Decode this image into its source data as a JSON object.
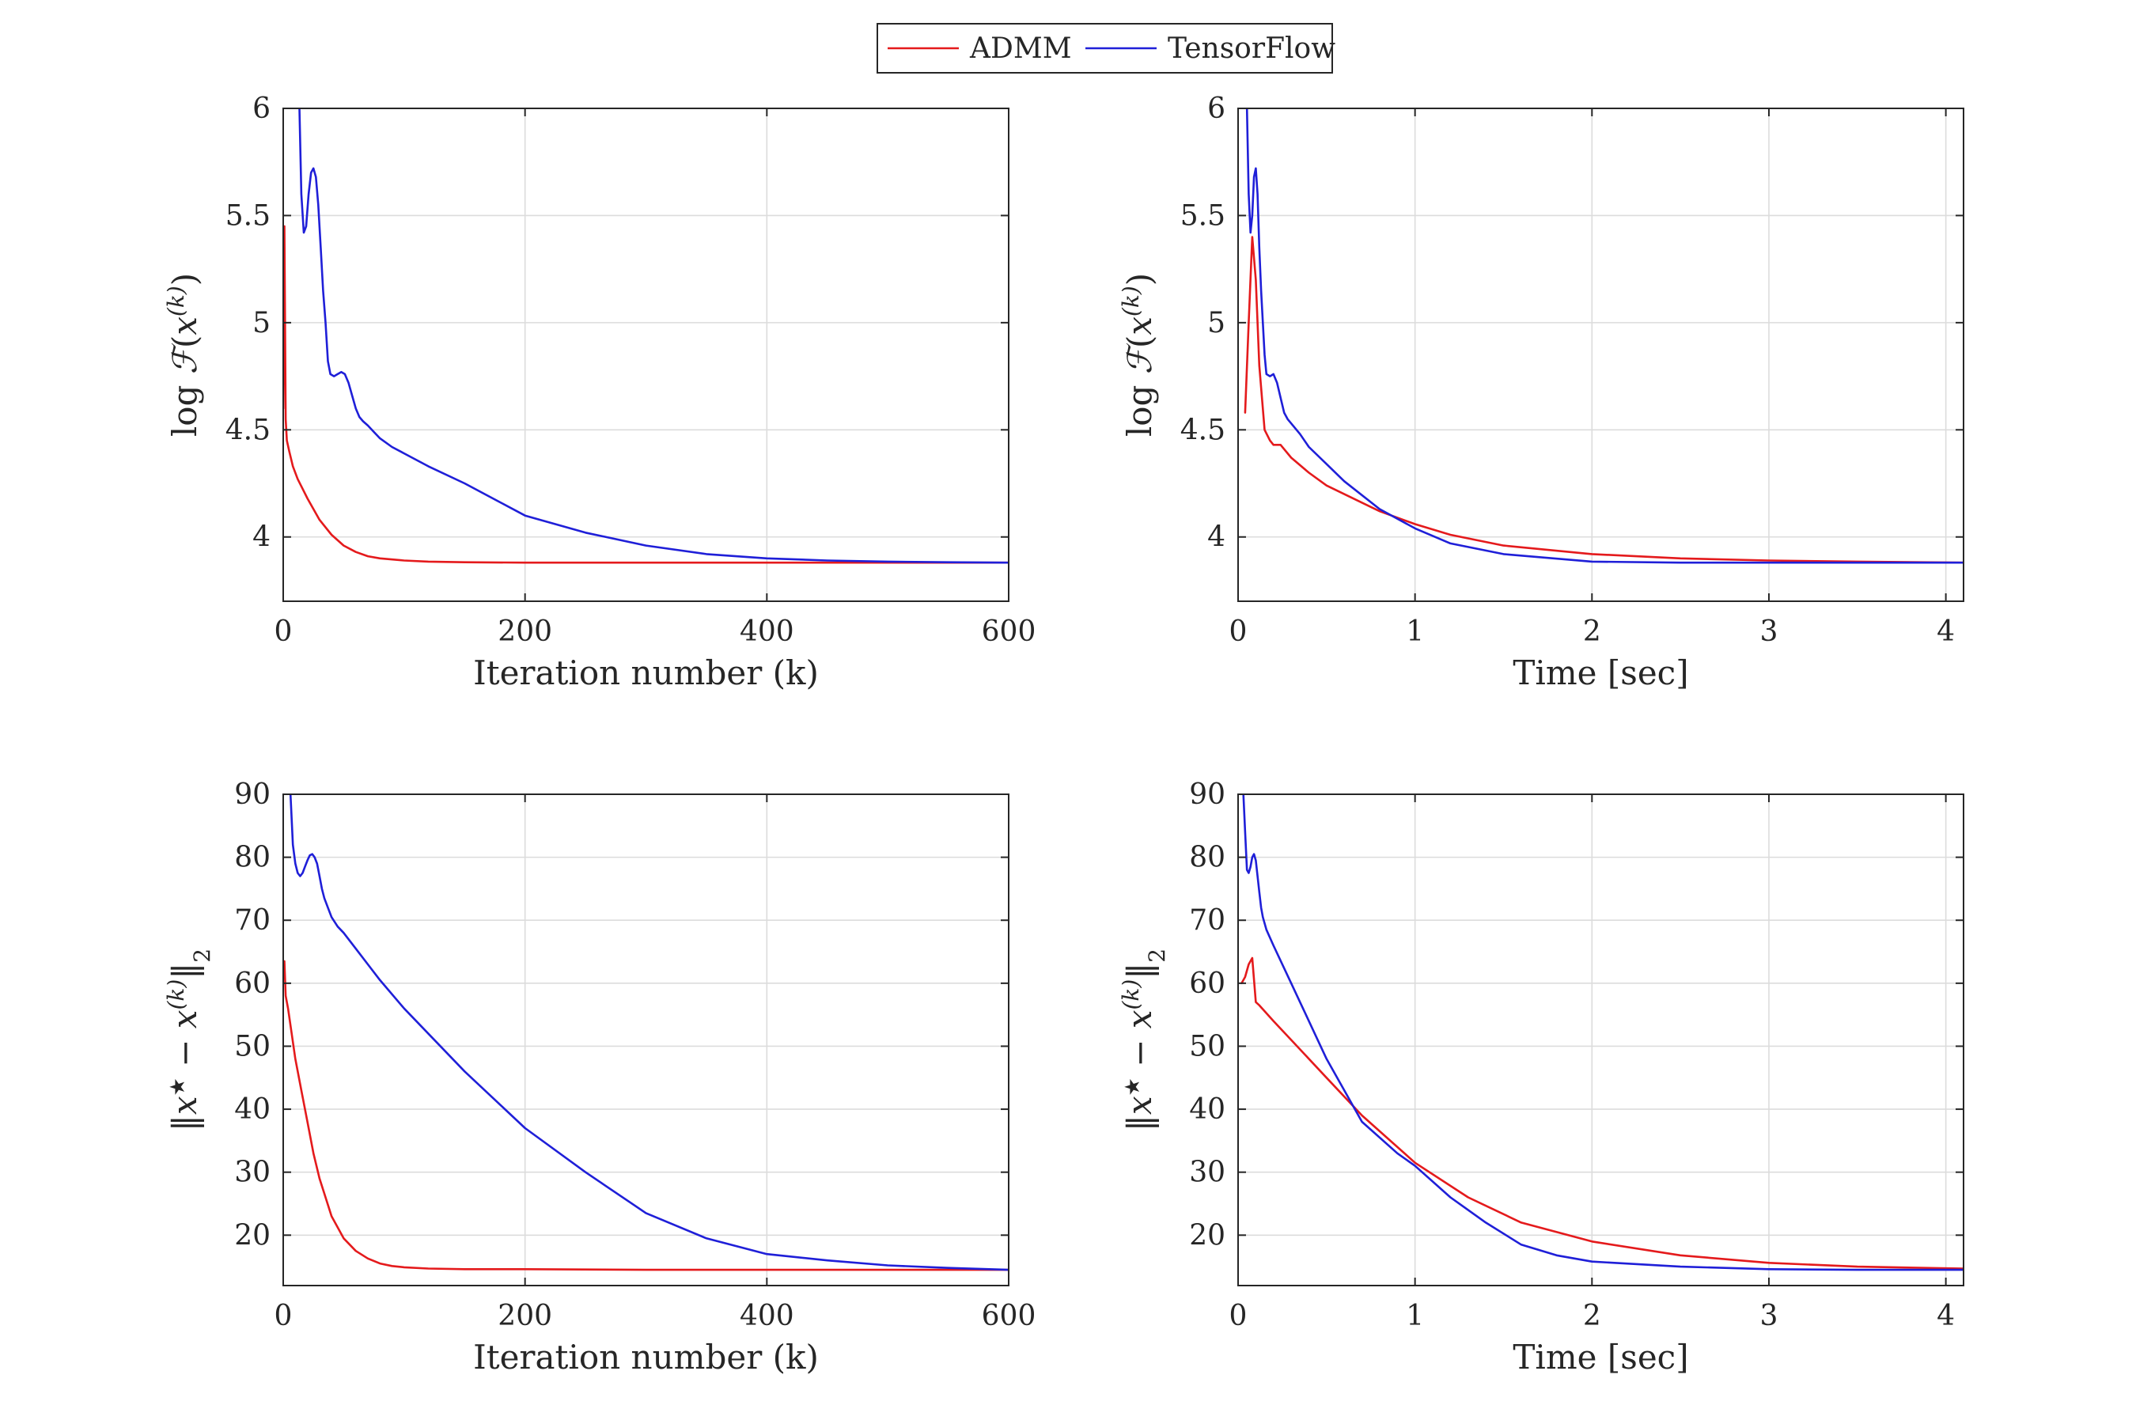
{
  "legend": {
    "position": "top-center",
    "entries": [
      {
        "name": "ADMM",
        "color": "#e41a1c"
      },
      {
        "name": "TensorFlow",
        "color": "#1f1fd8"
      }
    ]
  },
  "colors": {
    "ADMM": "#e41a1c",
    "TensorFlow": "#1f1fd8",
    "grid": "#dcdcdc",
    "axis": "#262626"
  },
  "chart_data": [
    {
      "type": "line",
      "id": "obj-vs-iter",
      "xlabel": "Iteration number (k)",
      "ylabel_parts": [
        "log ",
        "ℱ",
        "(",
        "x",
        "(k)",
        ")"
      ],
      "xlim": [
        0,
        600
      ],
      "ylim": [
        3.7,
        6.0
      ],
      "xticks": [
        0,
        200,
        400,
        600
      ],
      "xtick_labels": [
        "0",
        "200",
        "400",
        "600"
      ],
      "yticks": [
        4,
        4.5,
        5,
        5.5,
        6
      ],
      "ytick_labels": [
        "4",
        "4.5",
        "5",
        "5.5",
        "6"
      ],
      "grid": true,
      "series": [
        {
          "name": "ADMM",
          "x": [
            0,
            1,
            2,
            3,
            5,
            8,
            12,
            20,
            30,
            40,
            50,
            60,
            70,
            80,
            100,
            120,
            150,
            200,
            300,
            400,
            500,
            600
          ],
          "y": [
            4.6,
            5.45,
            4.55,
            4.45,
            4.4,
            4.33,
            4.27,
            4.18,
            4.08,
            4.01,
            3.96,
            3.93,
            3.91,
            3.9,
            3.89,
            3.885,
            3.882,
            3.88,
            3.88,
            3.88,
            3.88,
            3.88
          ]
        },
        {
          "name": "TensorFlow",
          "x": [
            13,
            15,
            17,
            19,
            21,
            23,
            25,
            27,
            29,
            31,
            33,
            35,
            37,
            39,
            42,
            45,
            48,
            51,
            54,
            57,
            60,
            63,
            66,
            70,
            75,
            80,
            90,
            100,
            120,
            150,
            200,
            250,
            300,
            350,
            400,
            450,
            500,
            550,
            600
          ],
          "y": [
            6.1,
            5.6,
            5.42,
            5.45,
            5.6,
            5.7,
            5.72,
            5.68,
            5.55,
            5.35,
            5.15,
            5.0,
            4.82,
            4.76,
            4.75,
            4.76,
            4.77,
            4.76,
            4.72,
            4.66,
            4.6,
            4.56,
            4.54,
            4.52,
            4.49,
            4.46,
            4.42,
            4.39,
            4.33,
            4.25,
            4.1,
            4.02,
            3.96,
            3.92,
            3.9,
            3.89,
            3.885,
            3.882,
            3.88
          ]
        }
      ]
    },
    {
      "type": "line",
      "id": "obj-vs-time",
      "xlabel": "Time [sec]",
      "ylabel_parts": [
        "log ",
        "ℱ",
        "(",
        "x",
        "(k)",
        ")"
      ],
      "xlim": [
        0,
        4.1
      ],
      "ylim": [
        3.7,
        6.0
      ],
      "xticks": [
        0,
        1,
        2,
        3,
        4
      ],
      "xtick_labels": [
        "0",
        "1",
        "2",
        "3",
        "4"
      ],
      "yticks": [
        4,
        4.5,
        5,
        5.5,
        6
      ],
      "ytick_labels": [
        "4",
        "4.5",
        "5",
        "5.5",
        "6"
      ],
      "grid": true,
      "series": [
        {
          "name": "ADMM",
          "x": [
            0.04,
            0.06,
            0.08,
            0.1,
            0.12,
            0.15,
            0.18,
            0.2,
            0.24,
            0.3,
            0.4,
            0.5,
            0.6,
            0.8,
            1.0,
            1.2,
            1.5,
            2.0,
            2.5,
            3.0,
            3.5,
            4.1
          ],
          "y": [
            4.58,
            5.0,
            5.4,
            5.2,
            4.8,
            4.5,
            4.45,
            4.43,
            4.43,
            4.37,
            4.3,
            4.24,
            4.2,
            4.12,
            4.06,
            4.01,
            3.96,
            3.92,
            3.9,
            3.89,
            3.885,
            3.88
          ]
        },
        {
          "name": "TensorFlow",
          "x": [
            0.05,
            0.06,
            0.07,
            0.08,
            0.09,
            0.1,
            0.11,
            0.12,
            0.13,
            0.14,
            0.15,
            0.16,
            0.18,
            0.2,
            0.22,
            0.24,
            0.26,
            0.28,
            0.3,
            0.35,
            0.4,
            0.5,
            0.6,
            0.8,
            1.0,
            1.2,
            1.5,
            2.0,
            2.5,
            3.0,
            3.5,
            4.1
          ],
          "y": [
            6.0,
            5.6,
            5.42,
            5.5,
            5.68,
            5.72,
            5.6,
            5.35,
            5.15,
            5.0,
            4.85,
            4.76,
            4.75,
            4.76,
            4.72,
            4.65,
            4.58,
            4.55,
            4.53,
            4.48,
            4.42,
            4.34,
            4.26,
            4.13,
            4.04,
            3.97,
            3.92,
            3.885,
            3.88,
            3.88,
            3.88,
            3.88
          ]
        }
      ]
    },
    {
      "type": "line",
      "id": "err-vs-iter",
      "xlabel": "Iteration number (k)",
      "ylabel_parts": [
        "‖",
        "x",
        "★",
        " − ",
        "x",
        "(k)",
        "‖",
        "2"
      ],
      "xlim": [
        0,
        600
      ],
      "ylim": [
        12,
        90
      ],
      "xticks": [
        0,
        200,
        400,
        600
      ],
      "xtick_labels": [
        "0",
        "200",
        "400",
        "600"
      ],
      "yticks": [
        20,
        30,
        40,
        50,
        60,
        70,
        80,
        90
      ],
      "ytick_labels": [
        "20",
        "30",
        "40",
        "50",
        "60",
        "70",
        "80",
        "90"
      ],
      "grid": true,
      "series": [
        {
          "name": "ADMM",
          "x": [
            0,
            1,
            2,
            4,
            7,
            10,
            15,
            20,
            25,
            30,
            35,
            40,
            50,
            60,
            70,
            80,
            90,
            100,
            120,
            150,
            200,
            300,
            400,
            500,
            600
          ],
          "y": [
            62,
            63.5,
            58,
            56,
            52,
            48,
            43,
            38,
            33,
            29,
            26,
            23,
            19.5,
            17.5,
            16.3,
            15.5,
            15.1,
            14.9,
            14.7,
            14.6,
            14.6,
            14.5,
            14.5,
            14.5,
            14.5
          ]
        },
        {
          "name": "TensorFlow",
          "x": [
            6,
            7,
            8,
            10,
            12,
            14,
            16,
            18,
            20,
            22,
            24,
            26,
            28,
            30,
            32,
            34,
            37,
            40,
            45,
            50,
            60,
            70,
            80,
            100,
            150,
            200,
            250,
            300,
            350,
            400,
            450,
            500,
            550,
            600
          ],
          "y": [
            90,
            86,
            82,
            79,
            77.5,
            77,
            77.5,
            78.5,
            79.5,
            80.3,
            80.5,
            80,
            79,
            77,
            75,
            73.5,
            72,
            70.5,
            69,
            68,
            65.5,
            63,
            60.5,
            56,
            46,
            37,
            30,
            23.5,
            19.5,
            17,
            16,
            15.2,
            14.8,
            14.5
          ]
        }
      ]
    },
    {
      "type": "line",
      "id": "err-vs-time",
      "xlabel": "Time [sec]",
      "ylabel_parts": [
        "‖",
        "x",
        "★",
        " − ",
        "x",
        "(k)",
        "‖",
        "2"
      ],
      "xlim": [
        0,
        4.1
      ],
      "ylim": [
        12,
        90
      ],
      "xticks": [
        0,
        1,
        2,
        3,
        4
      ],
      "xtick_labels": [
        "0",
        "1",
        "2",
        "3",
        "4"
      ],
      "yticks": [
        20,
        30,
        40,
        50,
        60,
        70,
        80,
        90
      ],
      "ytick_labels": [
        "20",
        "30",
        "40",
        "50",
        "60",
        "70",
        "80",
        "90"
      ],
      "grid": true,
      "series": [
        {
          "name": "ADMM",
          "x": [
            0.02,
            0.04,
            0.06,
            0.08,
            0.1,
            0.12,
            0.2,
            0.3,
            0.5,
            0.7,
            1.0,
            1.3,
            1.6,
            2.0,
            2.5,
            3.0,
            3.5,
            4.1
          ],
          "y": [
            60,
            61,
            63,
            64,
            57,
            56.5,
            54,
            51,
            45,
            39,
            31.5,
            26,
            22,
            19,
            16.8,
            15.6,
            15,
            14.7
          ]
        },
        {
          "name": "TensorFlow",
          "x": [
            0.03,
            0.04,
            0.05,
            0.06,
            0.07,
            0.08,
            0.09,
            0.1,
            0.11,
            0.12,
            0.13,
            0.14,
            0.16,
            0.2,
            0.3,
            0.5,
            0.7,
            0.9,
            1.0,
            1.2,
            1.4,
            1.6,
            1.8,
            2.0,
            2.5,
            3.0,
            3.5,
            4.1
          ],
          "y": [
            90,
            84,
            78,
            77.5,
            78.5,
            80,
            80.5,
            79.5,
            77,
            74.5,
            72,
            70.5,
            68.5,
            66,
            60,
            48,
            38,
            33,
            31,
            26,
            22,
            18.5,
            16.8,
            15.8,
            15,
            14.6,
            14.5,
            14.5
          ]
        }
      ]
    }
  ]
}
